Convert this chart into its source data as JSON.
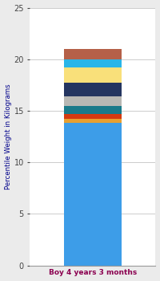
{
  "category": "Boy 4 years 3 months",
  "segments": [
    {
      "value": 13.8,
      "color": "#3d9de8"
    },
    {
      "value": 0.4,
      "color": "#e8a030"
    },
    {
      "value": 0.5,
      "color": "#d43a10"
    },
    {
      "value": 0.8,
      "color": "#1a7a8a"
    },
    {
      "value": 0.9,
      "color": "#b8b8b4"
    },
    {
      "value": 1.3,
      "color": "#243560"
    },
    {
      "value": 1.5,
      "color": "#f9e07a"
    },
    {
      "value": 0.8,
      "color": "#29b5e8"
    },
    {
      "value": 1.0,
      "color": "#b56048"
    }
  ],
  "ylabel": "Percentile Weight in Kilograms",
  "ylim": [
    0,
    25
  ],
  "yticks": [
    0,
    5,
    10,
    15,
    20,
    25
  ],
  "bg_color": "#ebebeb",
  "plot_bg_color": "#ffffff",
  "xlabel_color": "#8b0050",
  "ylabel_color": "#00008b",
  "tick_color": "#444444",
  "grid_color": "#cccccc",
  "bar_width": 0.5
}
